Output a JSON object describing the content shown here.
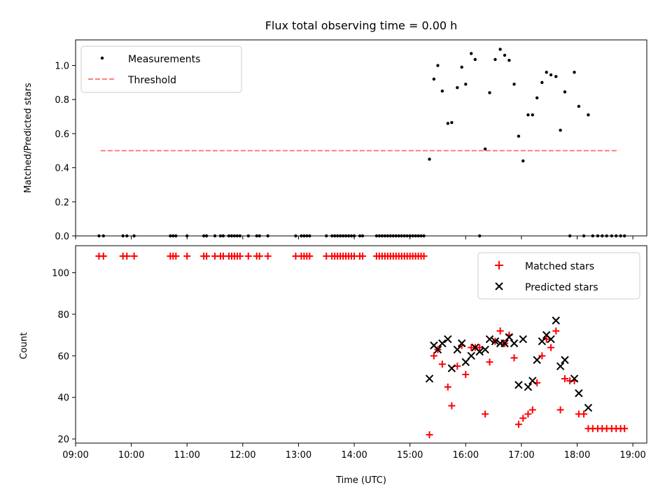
{
  "chart_data": [
    {
      "type": "scatter",
      "title": "Flux total observing time = 0.00 h",
      "xlabel": "",
      "ylabel": "Matched/Predicted stars",
      "xlim": [
        9.0,
        19.25
      ],
      "ylim": [
        0,
        1.15
      ],
      "x_ticks": [
        "09:00",
        "10:00",
        "11:00",
        "12:00",
        "13:00",
        "14:00",
        "15:00",
        "16:00",
        "17:00",
        "18:00",
        "19:00"
      ],
      "x_tick_values": [
        9,
        10,
        11,
        12,
        13,
        14,
        15,
        16,
        17,
        18,
        19
      ],
      "x_tick_labels_visible": false,
      "y_ticks": [
        "0.0",
        "0.2",
        "0.4",
        "0.6",
        "0.8",
        "1.0"
      ],
      "y_tick_values": [
        0.0,
        0.2,
        0.4,
        0.6,
        0.8,
        1.0
      ],
      "legend_position": "top-left",
      "colors": {
        "measurements": "#000000",
        "threshold": "#ff7f7f"
      },
      "series": [
        {
          "name": "Measurements",
          "x": [
            9.42,
            9.5,
            9.85,
            9.92,
            10.05,
            10.7,
            10.75,
            10.8,
            11.0,
            11.3,
            11.35,
            11.5,
            11.6,
            11.65,
            11.75,
            11.8,
            11.85,
            11.9,
            11.95,
            12.1,
            12.25,
            12.3,
            12.45,
            12.95,
            13.05,
            13.1,
            13.15,
            13.2,
            13.5,
            13.6,
            13.65,
            13.7,
            13.75,
            13.8,
            13.85,
            13.9,
            13.95,
            14.0,
            14.1,
            14.15,
            14.4,
            14.45,
            14.5,
            14.55,
            14.6,
            14.65,
            14.7,
            14.75,
            14.8,
            14.85,
            14.9,
            14.95,
            15.0,
            15.05,
            15.1,
            15.15,
            15.2,
            15.25,
            15.35,
            15.43,
            15.5,
            15.58,
            15.68,
            15.75,
            15.85,
            15.93,
            16.0,
            16.1,
            16.17,
            16.25,
            16.35,
            16.43,
            16.53,
            16.62,
            16.7,
            16.78,
            16.87,
            16.95,
            17.03,
            17.12,
            17.2,
            17.28,
            17.37,
            17.45,
            17.53,
            17.62,
            17.7,
            17.78,
            17.87,
            17.95,
            18.03,
            18.12,
            18.2,
            18.28,
            18.37,
            18.45,
            18.53,
            18.62,
            18.7,
            18.78,
            18.85
          ],
          "y": [
            0,
            0,
            0,
            0,
            0,
            0,
            0,
            0,
            0,
            0,
            0,
            0,
            0,
            0,
            0,
            0,
            0,
            0,
            0,
            0,
            0,
            0,
            0,
            0,
            0,
            0,
            0,
            0,
            0,
            0,
            0,
            0,
            0,
            0,
            0,
            0,
            0,
            0,
            0,
            0,
            0,
            0,
            0,
            0,
            0,
            0,
            0,
            0,
            0,
            0,
            0,
            0,
            0,
            0,
            0,
            0,
            0,
            0,
            0.45,
            0.92,
            1.0,
            0.85,
            0.66,
            0.665,
            0.87,
            0.99,
            0.89,
            1.07,
            1.035,
            0,
            0.51,
            0.84,
            1.035,
            1.095,
            1.06,
            1.03,
            0.89,
            0.585,
            0.44,
            0.71,
            0.71,
            0.81,
            0.9,
            0.96,
            0.945,
            0.935,
            0.62,
            0.845,
            0,
            0.96,
            0.76,
            0,
            0.71,
            0,
            0,
            0,
            0,
            0,
            0,
            0,
            0
          ]
        },
        {
          "name": "Threshold",
          "x": [
            9.45,
            18.75
          ],
          "y": [
            0.5,
            0.5
          ]
        }
      ]
    },
    {
      "type": "scatter",
      "title": "",
      "xlabel": "Time (UTC)",
      "ylabel": "Count",
      "xlim": [
        9.0,
        19.25
      ],
      "ylim": [
        18,
        113
      ],
      "x_ticks": [
        "09:00",
        "10:00",
        "11:00",
        "12:00",
        "13:00",
        "14:00",
        "15:00",
        "16:00",
        "17:00",
        "18:00",
        "19:00"
      ],
      "x_tick_values": [
        9,
        10,
        11,
        12,
        13,
        14,
        15,
        16,
        17,
        18,
        19
      ],
      "y_ticks": [
        "20",
        "40",
        "60",
        "80",
        "100"
      ],
      "y_tick_values": [
        20,
        40,
        60,
        80,
        100
      ],
      "legend_position": "top-right",
      "colors": {
        "matched": "#ff0000",
        "predicted": "#000000"
      },
      "series": [
        {
          "name": "Matched stars",
          "x": [
            9.42,
            9.5,
            9.85,
            9.92,
            10.05,
            10.7,
            10.75,
            10.8,
            11.0,
            11.3,
            11.35,
            11.5,
            11.6,
            11.65,
            11.75,
            11.8,
            11.85,
            11.9,
            11.95,
            12.1,
            12.25,
            12.3,
            12.45,
            12.95,
            13.05,
            13.1,
            13.15,
            13.2,
            13.5,
            13.6,
            13.65,
            13.7,
            13.75,
            13.8,
            13.85,
            13.9,
            13.95,
            14.0,
            14.1,
            14.15,
            14.4,
            14.45,
            14.5,
            14.55,
            14.6,
            14.65,
            14.7,
            14.75,
            14.8,
            14.85,
            14.9,
            14.95,
            15.0,
            15.05,
            15.1,
            15.15,
            15.2,
            15.25,
            15.35,
            15.43,
            15.5,
            15.58,
            15.68,
            15.75,
            15.85,
            15.93,
            16.0,
            16.1,
            16.17,
            16.25,
            16.35,
            16.43,
            16.53,
            16.62,
            16.7,
            16.78,
            16.87,
            16.95,
            17.03,
            17.12,
            17.2,
            17.28,
            17.37,
            17.45,
            17.53,
            17.62,
            17.7,
            17.78,
            17.87,
            17.95,
            18.03,
            18.12,
            18.2,
            18.28,
            18.37,
            18.45,
            18.53,
            18.62,
            18.7,
            18.78,
            18.85
          ],
          "y": [
            108,
            108,
            108,
            108,
            108,
            108,
            108,
            108,
            108,
            108,
            108,
            108,
            108,
            108,
            108,
            108,
            108,
            108,
            108,
            108,
            108,
            108,
            108,
            108,
            108,
            108,
            108,
            108,
            108,
            108,
            108,
            108,
            108,
            108,
            108,
            108,
            108,
            108,
            108,
            108,
            108,
            108,
            108,
            108,
            108,
            108,
            108,
            108,
            108,
            108,
            108,
            108,
            108,
            108,
            108,
            108,
            108,
            108,
            22,
            60,
            63,
            56,
            45,
            36,
            55,
            65,
            51,
            64,
            64,
            64,
            32,
            57,
            67,
            72,
            66,
            70,
            59,
            27,
            30,
            32,
            34,
            47,
            60,
            68,
            64,
            72,
            34,
            49,
            48,
            48,
            32,
            32,
            25,
            25,
            25,
            25,
            25,
            25,
            25,
            25,
            25
          ]
        },
        {
          "name": "Predicted stars",
          "x": [
            15.35,
            15.43,
            15.5,
            15.58,
            15.68,
            15.75,
            15.85,
            15.93,
            16.0,
            16.1,
            16.17,
            16.25,
            16.35,
            16.43,
            16.53,
            16.62,
            16.7,
            16.78,
            16.87,
            16.95,
            17.03,
            17.12,
            17.2,
            17.28,
            17.37,
            17.45,
            17.53,
            17.62,
            17.7,
            17.78,
            17.95,
            18.03,
            18.2
          ],
          "y": [
            49,
            65,
            63,
            66,
            68,
            54,
            63,
            66,
            57,
            60,
            64,
            62,
            63,
            68,
            67,
            66,
            66,
            69,
            66,
            46,
            68,
            45,
            48,
            58,
            67,
            70,
            68,
            77,
            55,
            58,
            49,
            42,
            35
          ]
        }
      ]
    }
  ]
}
